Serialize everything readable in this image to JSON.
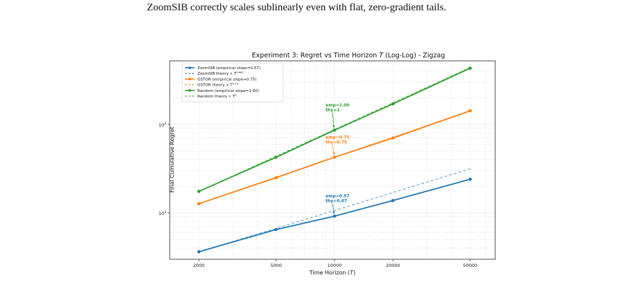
{
  "caption": {
    "line1": "ZoomSIB correctly scales sublinearly even with flat, zero-gradient tails."
  },
  "chart_data": {
    "type": "line",
    "title_prefix": "Experiment 3: Regret vs Time Horizon ",
    "title_var": "T",
    "title_suffix": " (Log-Log) - Zigzag",
    "xlabel_prefix": "Time Horizon (",
    "xlabel_var": "T",
    "xlabel_suffix": ")",
    "ylabel": "Final Cumulative Regret",
    "x_scale": "log",
    "y_scale": "log",
    "xlim": [
      1600,
      62000
    ],
    "ylim": [
      300,
      52000
    ],
    "x_ticks": [
      2000,
      5000,
      10000,
      20000,
      50000
    ],
    "x_tick_labels": [
      "2000",
      "5000",
      "10000",
      "20000",
      "50000"
    ],
    "y_ticks": [
      1000,
      10000
    ],
    "y_tick_labels": [
      {
        "base": "10",
        "exp": "3"
      },
      {
        "base": "10",
        "exp": "4"
      }
    ],
    "grid": true,
    "legend_position": "top-left",
    "x": [
      2000,
      5000,
      10000,
      20000,
      50000
    ],
    "series": [
      {
        "name": "ZoomSIB (empirical slope=0.57)",
        "color": "#1f77b4",
        "style": "solid-marker",
        "values": [
          365,
          650,
          920,
          1380,
          2400
        ]
      },
      {
        "name_prefix": "ZoomSIB theory ∝ T",
        "name_exp": "0.667",
        "color": "#1f77b4",
        "style": "dashed",
        "values": [
          365,
          670,
          1065,
          1700,
          3150
        ]
      },
      {
        "name": "GSTOR (empirical slope=0.75)",
        "color": "#ff7f0e",
        "style": "solid-marker",
        "values": [
          1270,
          2500,
          4250,
          7000,
          14200
        ]
      },
      {
        "name_prefix": "GSTOR theory ∝ T",
        "name_exp": "0.75",
        "color": "#ff7f0e",
        "style": "dashed",
        "values": [
          1270,
          2530,
          4260,
          7150,
          14200
        ]
      },
      {
        "name": "Random (empirical slope=1.00)",
        "color": "#2ca02c",
        "style": "solid-marker",
        "values": [
          1750,
          4250,
          8600,
          17000,
          43000
        ]
      },
      {
        "name_prefix": "Random theory ∝ T",
        "name_exp": "1",
        "color": "#2ca02c",
        "style": "dashed",
        "values": [
          1750,
          4375,
          8750,
          17500,
          43750
        ]
      }
    ],
    "annotations": [
      {
        "line1": "emp=1.00",
        "line2": "thy=1",
        "color": "#2ca02c",
        "x": 10000,
        "y": 8600,
        "text_at": [
          9000,
          14500
        ]
      },
      {
        "line1": "emp=0.75",
        "line2": "thy=0.75",
        "color": "#ff7f0e",
        "x": 10000,
        "y": 4250,
        "text_at": [
          9000,
          6300
        ]
      },
      {
        "line1": "emp=0.57",
        "line2": "thy=0.67",
        "color": "#1f77b4",
        "x": 10000,
        "y": 920,
        "text_at": [
          9000,
          1370
        ]
      }
    ]
  }
}
